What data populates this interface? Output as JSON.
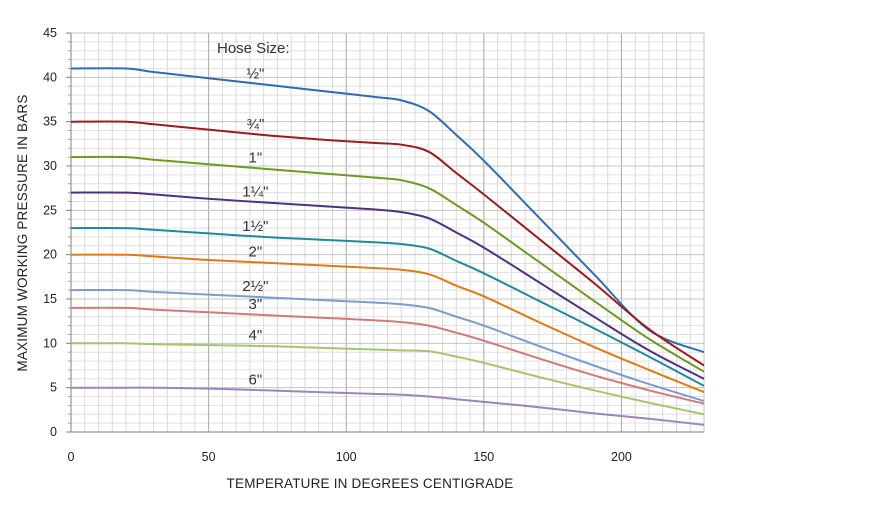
{
  "chart_data": {
    "type": "line",
    "xlabel": "TEMPERATURE IN DEGREES CENTIGRADE",
    "ylabel": "MAXIMUM WORKING PRESSURE IN BARS",
    "legend_title": "Hose Size:",
    "xlim": [
      0,
      230
    ],
    "ylim": [
      0,
      45
    ],
    "x_ticks": [
      "0",
      "50",
      "100",
      "150",
      "200"
    ],
    "y_ticks": [
      "0",
      "5",
      "10",
      "15",
      "20",
      "25",
      "30",
      "35",
      "40",
      "45"
    ],
    "grid": "on",
    "x": [
      0,
      20,
      30,
      50,
      70,
      90,
      110,
      120,
      130,
      140,
      150,
      170,
      190,
      210,
      230
    ],
    "series": [
      {
        "name": "½\"",
        "color": "#2e6db3",
        "values": [
          41,
          41,
          40.6,
          39.9,
          39.2,
          38.5,
          37.8,
          37.4,
          36.2,
          33.5,
          30.6,
          24.2,
          17.8,
          11.5,
          9
        ]
      },
      {
        "name": "¾\"",
        "color": "#9b1c1c",
        "values": [
          35,
          35,
          34.7,
          34.1,
          33.5,
          33.0,
          32.6,
          32.4,
          31.6,
          29.2,
          26.8,
          21.8,
          16.8,
          11.6,
          7.5
        ]
      },
      {
        "name": "1\"",
        "color": "#6c9a1f",
        "values": [
          31,
          31,
          30.7,
          30.2,
          29.7,
          29.2,
          28.7,
          28.4,
          27.5,
          25.6,
          23.6,
          19.2,
          14.8,
          10.5,
          6.8
        ]
      },
      {
        "name": "1¼\"",
        "color": "#4f3182",
        "values": [
          27,
          27,
          26.8,
          26.3,
          25.9,
          25.5,
          25.1,
          24.8,
          24.1,
          22.5,
          20.8,
          16.9,
          13.0,
          9.2,
          6.0
        ]
      },
      {
        "name": "1½\"",
        "color": "#1f8a9e",
        "values": [
          23,
          23,
          22.8,
          22.4,
          22.0,
          21.7,
          21.4,
          21.2,
          20.7,
          19.3,
          17.9,
          14.8,
          11.7,
          8.5,
          5.2
        ]
      },
      {
        "name": "2\"",
        "color": "#e07a12",
        "values": [
          20,
          20,
          19.8,
          19.4,
          19.1,
          18.8,
          18.5,
          18.3,
          17.8,
          16.5,
          15.3,
          12.4,
          9.6,
          7.0,
          4.5
        ]
      },
      {
        "name": "2½\"",
        "color": "#7c9ccf",
        "values": [
          16,
          16,
          15.8,
          15.5,
          15.2,
          14.9,
          14.6,
          14.4,
          14.0,
          13.0,
          12.0,
          9.7,
          7.5,
          5.4,
          3.5
        ]
      },
      {
        "name": "3\"",
        "color": "#cf7b7b",
        "values": [
          14,
          14,
          13.8,
          13.5,
          13.2,
          12.9,
          12.6,
          12.4,
          12.0,
          11.2,
          10.3,
          8.3,
          6.4,
          4.7,
          3.2
        ]
      },
      {
        "name": "4\"",
        "color": "#a6c46c",
        "values": [
          10,
          10,
          9.9,
          9.8,
          9.7,
          9.5,
          9.3,
          9.2,
          9.1,
          8.5,
          7.8,
          6.2,
          4.7,
          3.3,
          2.0
        ]
      },
      {
        "name": "6\"",
        "color": "#9b86b5",
        "values": [
          5,
          5,
          5.0,
          4.9,
          4.7,
          4.5,
          4.3,
          4.2,
          4.0,
          3.7,
          3.4,
          2.8,
          2.1,
          1.5,
          0.8
        ]
      }
    ]
  }
}
